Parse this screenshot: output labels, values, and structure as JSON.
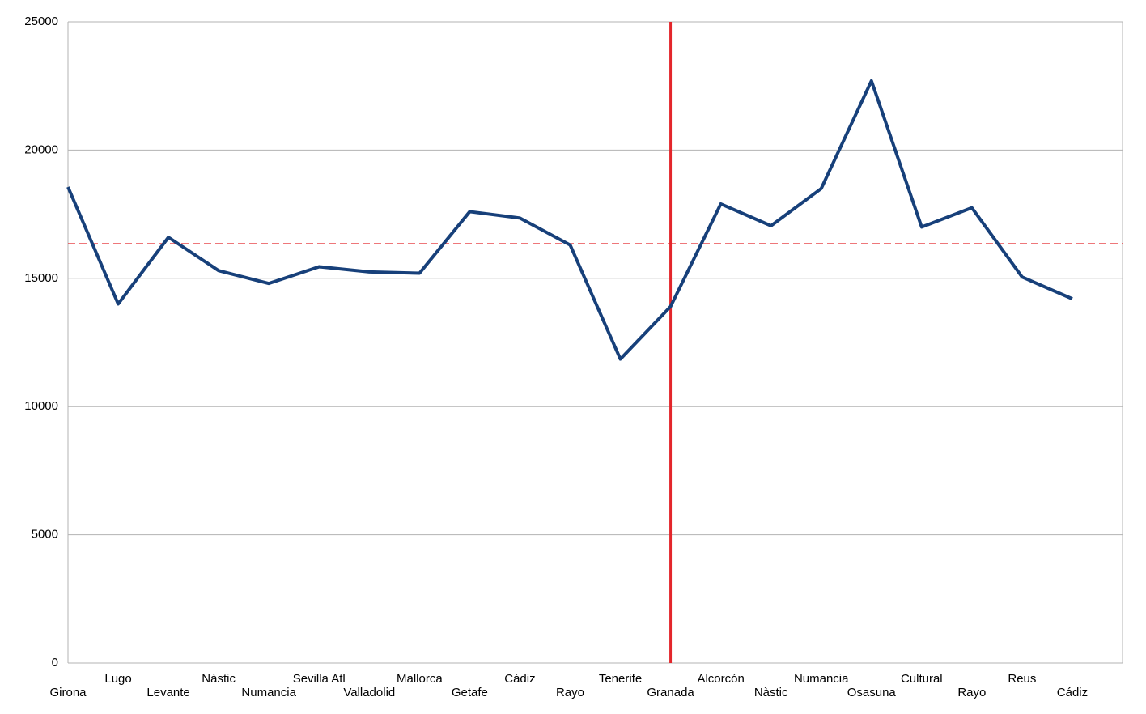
{
  "chart_data": {
    "type": "line",
    "categories": [
      "Girona",
      "Lugo",
      "Levante",
      "Nàstic",
      "Numancia",
      "Sevilla Atl",
      "Valladolid",
      "Mallorca",
      "Getafe",
      "Cádiz",
      "Rayo",
      "Tenerife",
      "Granada",
      "Alcorcón",
      "Nàstic",
      "Numancia",
      "Osasuna",
      "Cultural",
      "Rayo",
      "Reus",
      "Cádiz",
      null
    ],
    "series": [
      {
        "color": "#17407a",
        "values": [
          18560,
          14000,
          16600,
          15300,
          14800,
          15450,
          15250,
          15200,
          17600,
          17350,
          16300,
          11850,
          13900,
          17900,
          17050,
          18500,
          22700,
          17000,
          17750,
          15050,
          14200,
          null
        ]
      }
    ],
    "ylim": [
      0,
      25000
    ],
    "yticks": [
      0,
      5000,
      10000,
      15000,
      20000,
      25000
    ],
    "grid": true,
    "reference_line": {
      "value": 16350,
      "color": "#e3262b",
      "dashed": true
    },
    "vline_index": 12,
    "vline_color": "#e3262b"
  }
}
